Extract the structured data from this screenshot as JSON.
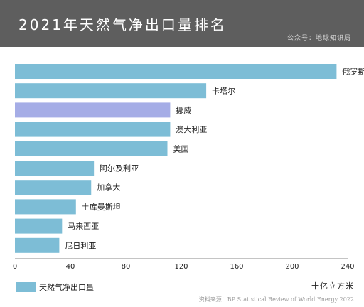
{
  "header": {
    "title": "2021年天然气净出口量排名",
    "source_tag": "公众号：地球知识局"
  },
  "colors": {
    "header_bg": "#5e5e5e",
    "bar": "#7dbdd6",
    "highlight_bar": "#a5ade6"
  },
  "chart_data": {
    "type": "bar",
    "orientation": "horizontal",
    "title": "2021年天然气净出口量排名",
    "categories": [
      "俄罗斯",
      "卡塔尔",
      "挪威",
      "澳大利亚",
      "美国",
      "阿尔及利亚",
      "加拿大",
      "土库曼斯坦",
      "马来西亚",
      "尼日利亚"
    ],
    "series": [
      {
        "name": "天然气净出口量",
        "values": [
          232,
          138,
          112,
          112,
          110,
          57,
          55,
          44,
          34,
          32
        ]
      }
    ],
    "highlight": "挪威",
    "xlim": [
      0,
      240
    ],
    "xticks": [
      0,
      40,
      80,
      120,
      160,
      200,
      240
    ],
    "xlabel": "十亿立方米",
    "legend_position": "bottom-left",
    "grid": false
  },
  "legend": {
    "label": "天然气净出口量"
  },
  "unit_label": "十亿立方米",
  "footer": {
    "source": "资料来源：BP Statistical Review of World Energy 2022"
  }
}
